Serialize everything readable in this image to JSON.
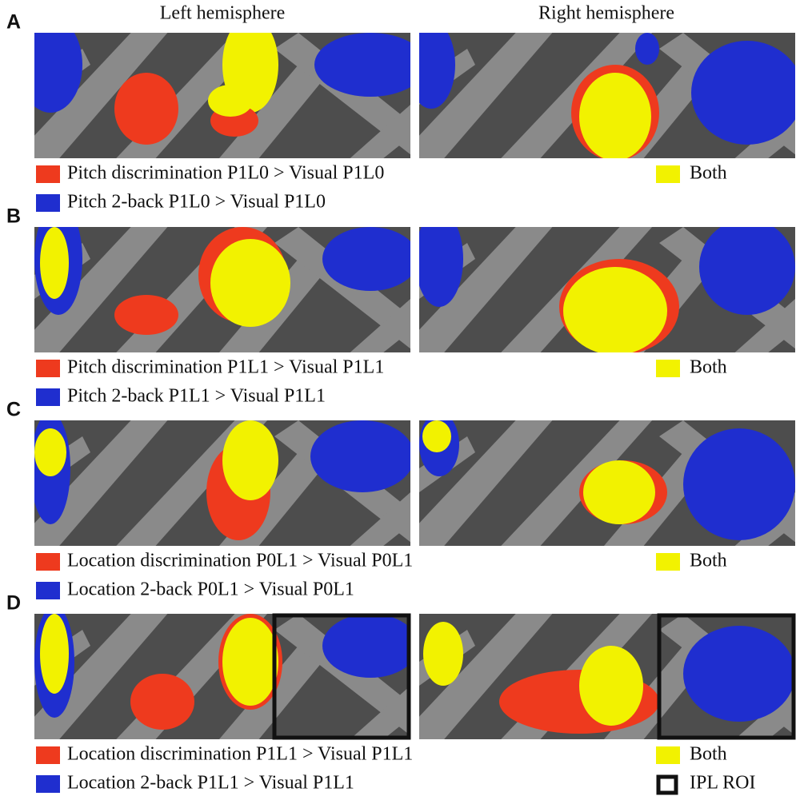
{
  "header": {
    "left": "Left hemisphere",
    "right": "Right hemisphere"
  },
  "colors": {
    "red": "#ee3a1e",
    "blue": "#1f2ecf",
    "yellow": "#f2f200"
  },
  "panels": [
    {
      "label": "A",
      "legend": [
        "Pitch discrimination P1L0 > Visual P1L0",
        "Pitch 2-back P1L0 > Visual P1L0"
      ],
      "both": "Both"
    },
    {
      "label": "B",
      "legend": [
        "Pitch discrimination P1L1 > Visual P1L1",
        "Pitch 2-back P1L1 > Visual P1L1"
      ],
      "both": "Both"
    },
    {
      "label": "C",
      "legend": [
        "Location discrimination P0L1 > Visual P0L1",
        "Location 2-back P0L1 > Visual P0L1"
      ],
      "both": "Both"
    },
    {
      "label": "D",
      "legend": [
        "Location discrimination P1L1 > Visual P1L1",
        "Location 2-back P1L1 > Visual P1L1"
      ],
      "both": "Both",
      "roi": "IPL ROI"
    }
  ]
}
